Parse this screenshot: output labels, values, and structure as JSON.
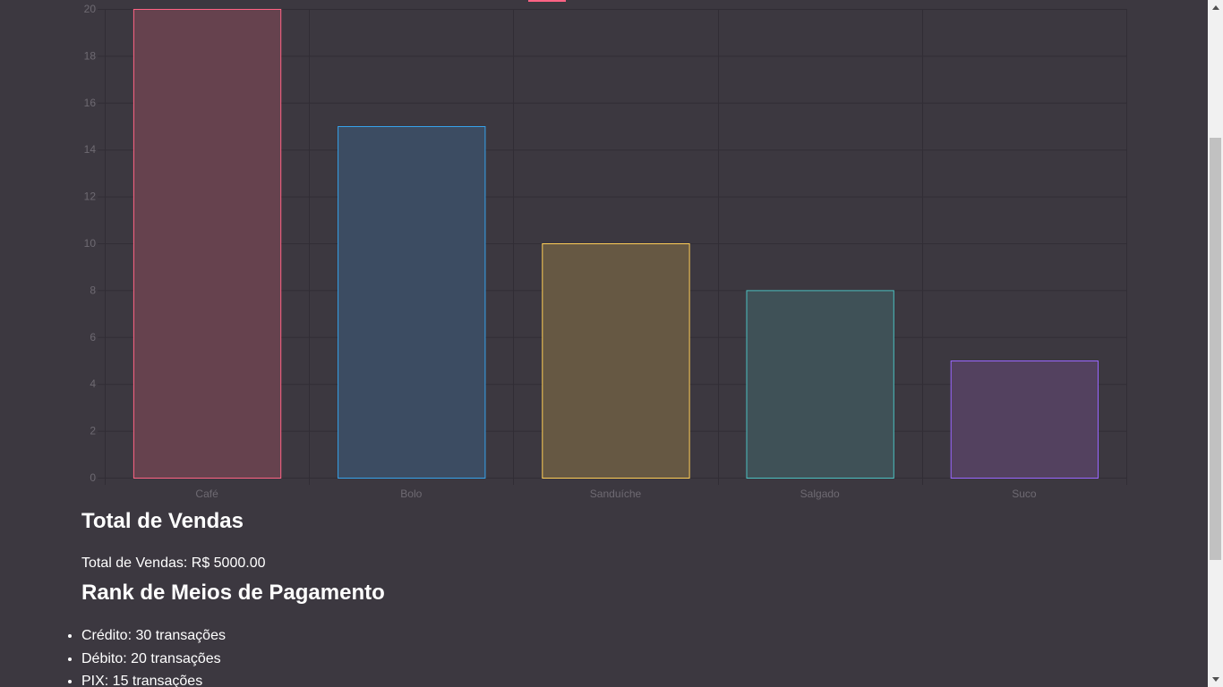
{
  "chart_data": {
    "type": "bar",
    "categories": [
      "Café",
      "Bolo",
      "Sanduíche",
      "Salgado",
      "Suco"
    ],
    "values": [
      20,
      15,
      10,
      8,
      5
    ],
    "ylim": [
      0,
      20
    ],
    "yticks": [
      "0",
      "2",
      "4",
      "6",
      "8",
      "10",
      "12",
      "14",
      "16",
      "18",
      "20"
    ],
    "grid": true,
    "bar_colors": [
      {
        "fill": "#66424e",
        "stroke": "#ff6384"
      },
      {
        "fill": "#3c4c62",
        "stroke": "#36a2eb"
      },
      {
        "fill": "#665843",
        "stroke": "#ffce56"
      },
      {
        "fill": "#3f5157",
        "stroke": "#4bc0c0"
      },
      {
        "fill": "#53415f",
        "stroke": "#9966ff"
      }
    ],
    "legend_swatch_color": "#ff6384"
  },
  "sales": {
    "heading": "Total de Vendas",
    "text": "Total de Vendas: R$ 5000.00"
  },
  "payments": {
    "heading": "Rank de Meios de Pagamento",
    "items": [
      "Crédito: 30 transações",
      "Débito: 20 transações",
      "PIX: 15 transações"
    ]
  },
  "colors": {
    "background": "#3c3840",
    "grid": "#312d35",
    "tick_text": "#6e6a72",
    "scrollbar_track": "#f1f1f1",
    "scrollbar_thumb": "#c1c1c1"
  }
}
